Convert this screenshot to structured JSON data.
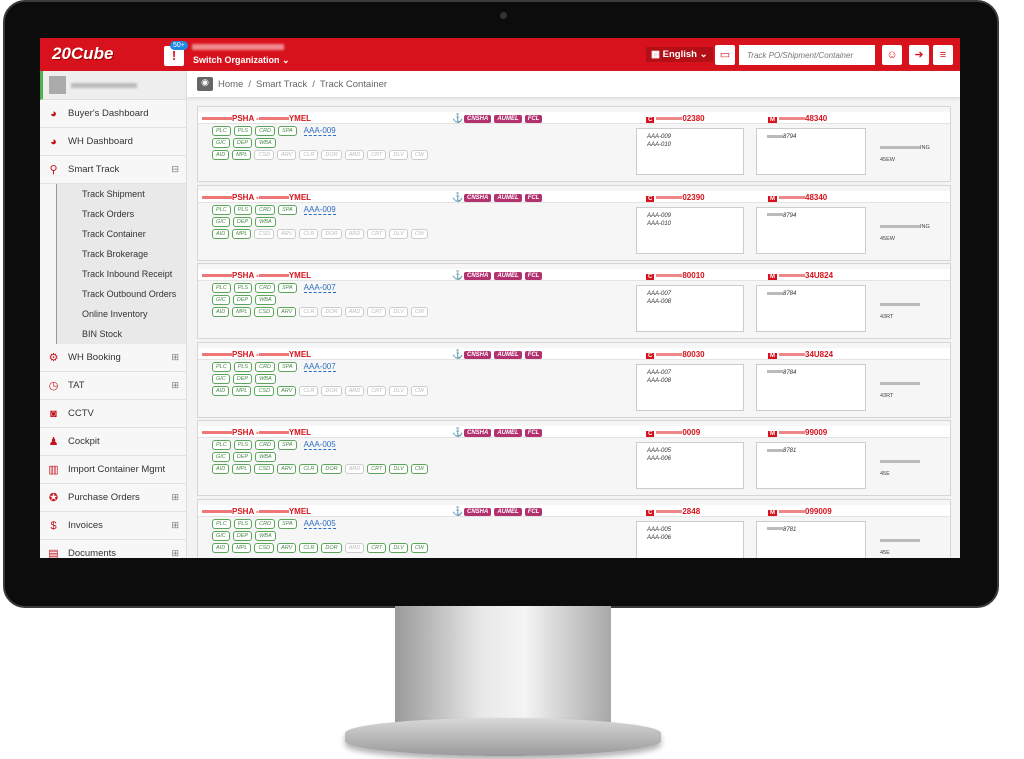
{
  "header": {
    "logo": "20Cube",
    "notification_count": "50+",
    "switch_org": "Switch Organization ⌄",
    "language": "English ⌄",
    "search_placeholder": "Track PO/Shipment/Container"
  },
  "breadcrumb": [
    "Home",
    "Smart Track",
    "Track Container"
  ],
  "sidebar": {
    "items": [
      {
        "label": "Buyer's Dashboard",
        "icon": "◕"
      },
      {
        "label": "WH Dashboard",
        "icon": "◕"
      },
      {
        "label": "Smart Track",
        "icon": "⚲",
        "toggle": "⊟",
        "sub": [
          "Track Shipment",
          "Track Orders",
          "Track Container",
          "Track Brokerage",
          "Track Inbound Receipt",
          "Track Outbound Orders",
          "Online Inventory",
          "BIN Stock"
        ]
      },
      {
        "label": "WH Booking",
        "icon": "⚙",
        "toggle": "⊞"
      },
      {
        "label": "TAT",
        "icon": "◷",
        "toggle": "⊞"
      },
      {
        "label": "CCTV",
        "icon": "◙"
      },
      {
        "label": "Cockpit",
        "icon": "♟"
      },
      {
        "label": "Import Container Mgmt",
        "icon": "▥"
      },
      {
        "label": "Purchase Orders",
        "icon": "✪",
        "toggle": "⊞"
      },
      {
        "label": "Invoices",
        "icon": "$",
        "toggle": "⊞"
      },
      {
        "label": "Documents",
        "icon": "▤",
        "toggle": "⊞"
      }
    ]
  },
  "tag_labels": {
    "row1": [
      "PLC",
      "PLS",
      "CRD",
      "SPA"
    ],
    "row2": [
      "GIC",
      "DEP",
      "WBA"
    ],
    "row3": [
      "AID",
      "MPL",
      "CSD",
      "ARV",
      "CLR",
      "DOR",
      "ARD",
      "CRT",
      "DLV",
      "CW"
    ]
  },
  "port_tags": [
    "CNSHA",
    "AUMEL",
    "FCL"
  ],
  "cards": [
    {
      "origin": "PSHA -",
      "dest": "YMEL",
      "ref": "AAA-009",
      "container": "02380",
      "mbl": "48340",
      "orders": [
        "AAA-009",
        "AAA-010"
      ],
      "hbl": "8794",
      "extra1": "ING",
      "extra2": "45EW",
      "row3_active": [
        1,
        1,
        0,
        0,
        0,
        0,
        0,
        0,
        0,
        0
      ]
    },
    {
      "origin": "PSHA -",
      "dest": "YMEL",
      "ref": "AAA-009",
      "container": "02390",
      "mbl": "48340",
      "orders": [
        "AAA-009",
        "AAA-010"
      ],
      "hbl": "8794",
      "extra1": "ING",
      "extra2": "45EW",
      "row3_active": [
        1,
        1,
        0,
        0,
        0,
        0,
        0,
        0,
        0,
        0
      ]
    },
    {
      "origin": "PSHA -",
      "dest": "YMEL",
      "ref": "AAA-007",
      "container": "80010",
      "mbl": "34U824",
      "orders": [
        "AAA-007",
        "AAA-008"
      ],
      "hbl": "8784",
      "extra1": "",
      "extra2": "43RT",
      "row3_active": [
        1,
        1,
        1,
        1,
        0,
        0,
        0,
        0,
        0,
        0
      ]
    },
    {
      "origin": "PSHA -",
      "dest": "YMEL",
      "ref": "AAA-007",
      "container": "80030",
      "mbl": "34U824",
      "orders": [
        "AAA-007",
        "AAA-008"
      ],
      "hbl": "8784",
      "extra1": "",
      "extra2": "43RT",
      "row3_active": [
        1,
        1,
        1,
        1,
        0,
        0,
        0,
        0,
        0,
        0
      ]
    },
    {
      "origin": "PSHA -",
      "dest": "YMEL",
      "ref": "AAA-005",
      "container": "0009",
      "mbl": "99009",
      "orders": [
        "AAA-005",
        "AAA-006"
      ],
      "hbl": "8781",
      "extra1": "",
      "extra2": "45E",
      "row3_active": [
        1,
        1,
        1,
        1,
        1,
        1,
        0,
        1,
        1,
        1
      ]
    },
    {
      "origin": "PSHA -",
      "dest": "YMEL",
      "ref": "AAA-005",
      "container": "2848",
      "mbl": "099009",
      "orders": [
        "AAA-005",
        "AAA-006"
      ],
      "hbl": "8781",
      "extra1": "",
      "extra2": "45E",
      "row3_active": [
        1,
        1,
        1,
        1,
        1,
        1,
        0,
        1,
        1,
        1
      ]
    }
  ]
}
